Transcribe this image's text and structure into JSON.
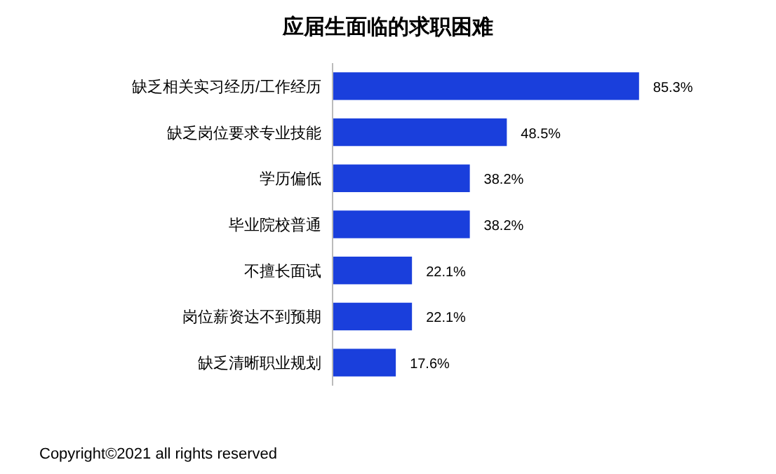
{
  "chart_data": {
    "type": "bar",
    "orientation": "horizontal",
    "title": "应届生面临的求职困难",
    "categories": [
      "缺乏相关实习经历/工作经历",
      "缺乏岗位要求专业技能",
      "学历偏低",
      "毕业院校普通",
      "不擅长面试",
      "岗位薪资达不到预期",
      "缺乏清晰职业规划"
    ],
    "values": [
      85.3,
      48.5,
      38.2,
      38.2,
      22.1,
      22.1,
      17.6
    ],
    "value_labels": [
      "85.3%",
      "48.5%",
      "38.2%",
      "38.2%",
      "22.1%",
      "22.1%",
      "17.6%"
    ],
    "color": "#1a3fdc",
    "annotations": [
      "Copyright©2021 all rights reserved"
    ]
  }
}
